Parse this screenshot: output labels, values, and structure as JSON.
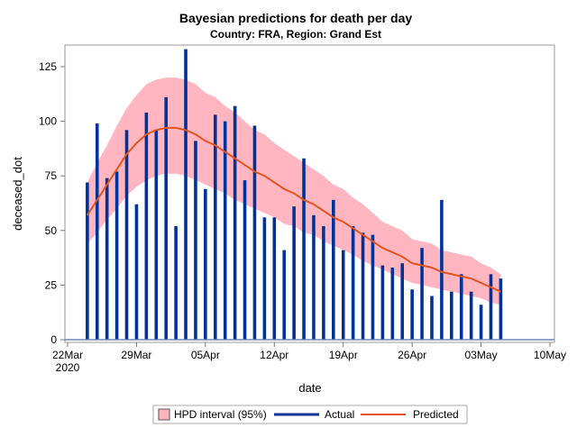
{
  "chart_data": {
    "type": "bar",
    "title": "Bayesian predictions for death per day",
    "subtitle": "Country: FRA, Region: Grand Est",
    "xlabel": "date",
    "ylabel": "deceased_dot",
    "xlim": [
      "2020-03-22",
      "2020-05-10"
    ],
    "ylim": [
      0,
      135
    ],
    "yticks": [
      0,
      25,
      50,
      75,
      100,
      125
    ],
    "xticks": [
      {
        "date": "2020-03-22",
        "label": "22Mar",
        "sublabel": "2020"
      },
      {
        "date": "2020-03-29",
        "label": "29Mar"
      },
      {
        "date": "2020-04-05",
        "label": "05Apr"
      },
      {
        "date": "2020-04-12",
        "label": "12Apr"
      },
      {
        "date": "2020-04-19",
        "label": "19Apr"
      },
      {
        "date": "2020-04-26",
        "label": "26Apr"
      },
      {
        "date": "2020-05-03",
        "label": "03May"
      },
      {
        "date": "2020-05-10",
        "label": "10May"
      }
    ],
    "grid": false,
    "legend_position": "bottom",
    "start_date": "2020-03-24",
    "series": [
      {
        "name": "Actual",
        "kind": "needle",
        "color": "#003399",
        "values": [
          72,
          99,
          74,
          77,
          96,
          62,
          104,
          96,
          111,
          52,
          133,
          91,
          69,
          103,
          100,
          107,
          73,
          98,
          56,
          56,
          41,
          61,
          83,
          57,
          52,
          64,
          41,
          52,
          49,
          48,
          34,
          33,
          35,
          23,
          42,
          20,
          64,
          22,
          30,
          22,
          16,
          30,
          28
        ]
      },
      {
        "name": "Predicted",
        "kind": "line",
        "color": "#e2541d",
        "values": [
          57,
          64,
          71,
          78,
          85,
          90,
          94,
          96,
          97,
          97,
          96,
          94,
          91,
          89,
          86,
          83,
          80,
          77,
          75,
          72,
          69,
          67,
          64,
          62,
          59,
          56,
          54,
          51,
          48,
          45,
          42,
          40,
          38,
          35,
          34,
          33,
          31,
          30,
          29,
          28,
          26,
          24,
          22
        ]
      },
      {
        "name": "HPD interval (95%)",
        "kind": "band",
        "color": "#ffb6c1",
        "upper": [
          72,
          81,
          89,
          98,
          106,
          112,
          117,
          119,
          120,
          120,
          119,
          117,
          113,
          111,
          107,
          104,
          100,
          96,
          94,
          90,
          87,
          84,
          81,
          78,
          75,
          71,
          69,
          65,
          62,
          58,
          54,
          52,
          50,
          46,
          45,
          44,
          41,
          40,
          39,
          38,
          35,
          33,
          30
        ],
        "lower": [
          44,
          49,
          55,
          60,
          66,
          70,
          73,
          75,
          76,
          76,
          75,
          73,
          71,
          69,
          67,
          64,
          62,
          60,
          58,
          56,
          53,
          52,
          49,
          48,
          45,
          43,
          41,
          39,
          36,
          34,
          32,
          30,
          28,
          26,
          25,
          24,
          23,
          22,
          21,
          20,
          19,
          17,
          16
        ]
      }
    ],
    "legend": [
      "HPD interval (95%)",
      "Actual",
      "Predicted"
    ]
  }
}
